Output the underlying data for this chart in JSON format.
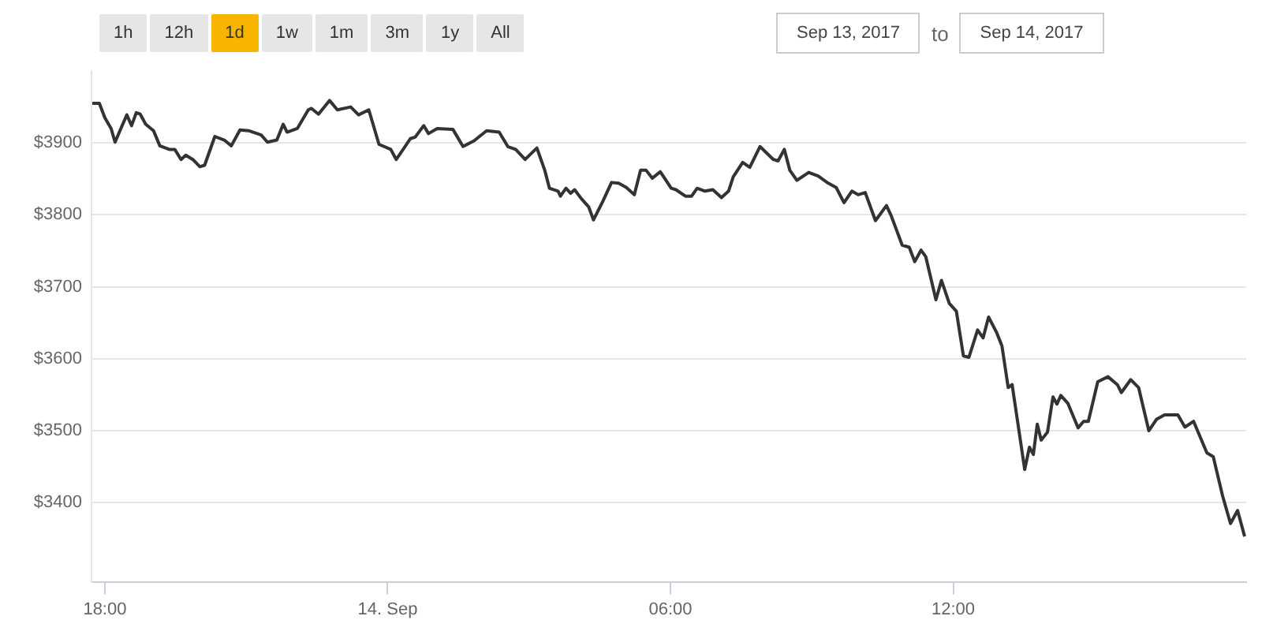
{
  "chart_data": {
    "type": "line",
    "annotations": [
      "1h",
      "12h",
      "1d",
      "1w",
      "1m",
      "3m",
      "1y",
      "All",
      "Sep 13, 2017",
      "to",
      "Sep 14, 2017"
    ],
    "x": [
      "2017-09-13T17:44",
      "2017-09-13T17:53",
      "2017-09-13T18:00",
      "2017-09-13T18:08",
      "2017-09-13T18:13",
      "2017-09-13T18:22",
      "2017-09-13T18:28",
      "2017-09-13T18:34",
      "2017-09-13T18:40",
      "2017-09-13T18:45",
      "2017-09-13T18:52",
      "2017-09-13T19:02",
      "2017-09-13T19:10",
      "2017-09-13T19:22",
      "2017-09-13T19:29",
      "2017-09-13T19:37",
      "2017-09-13T19:43",
      "2017-09-13T19:52",
      "2017-09-13T20:01",
      "2017-09-13T20:07",
      "2017-09-13T20:20",
      "2017-09-13T20:32",
      "2017-09-13T20:41",
      "2017-09-13T20:52",
      "2017-09-13T21:03",
      "2017-09-13T21:19",
      "2017-09-13T21:27",
      "2017-09-13T21:39",
      "2017-09-13T21:47",
      "2017-09-13T21:52",
      "2017-09-13T22:05",
      "2017-09-13T22:19",
      "2017-09-13T22:23",
      "2017-09-13T22:32",
      "2017-09-13T22:46",
      "2017-09-13T22:56",
      "2017-09-13T23:13",
      "2017-09-13T23:23",
      "2017-09-13T23:36",
      "2017-09-13T23:49",
      "2017-09-14T00:04",
      "2017-09-14T00:11",
      "2017-09-14T00:29",
      "2017-09-14T00:35",
      "2017-09-14T00:46",
      "2017-09-14T00:52",
      "2017-09-14T01:03",
      "2017-09-14T01:23",
      "2017-09-14T01:36",
      "2017-09-14T01:50",
      "2017-09-14T02:06",
      "2017-09-14T02:22",
      "2017-09-14T02:33",
      "2017-09-14T02:43",
      "2017-09-14T02:55",
      "2017-09-14T03:10",
      "2017-09-14T03:20",
      "2017-09-14T03:26",
      "2017-09-14T03:37",
      "2017-09-14T03:40",
      "2017-09-14T03:47",
      "2017-09-14T03:53",
      "2017-09-14T03:58",
      "2017-09-14T04:07",
      "2017-09-14T04:16",
      "2017-09-14T04:22",
      "2017-09-14T04:34",
      "2017-09-14T04:45",
      "2017-09-14T04:54",
      "2017-09-14T05:04",
      "2017-09-14T05:14",
      "2017-09-14T05:22",
      "2017-09-14T05:29",
      "2017-09-14T05:37",
      "2017-09-14T05:47",
      "2017-09-14T06:01",
      "2017-09-14T06:07",
      "2017-09-14T06:19",
      "2017-09-14T06:27",
      "2017-09-14T06:34",
      "2017-09-14T06:44",
      "2017-09-14T06:54",
      "2017-09-14T07:05",
      "2017-09-14T07:14",
      "2017-09-14T07:20",
      "2017-09-14T07:32",
      "2017-09-14T07:41",
      "2017-09-14T07:54",
      "2017-09-14T08:11",
      "2017-09-14T08:17",
      "2017-09-14T08:25",
      "2017-09-14T08:32",
      "2017-09-14T08:41",
      "2017-09-14T08:56",
      "2017-09-14T09:08",
      "2017-09-14T09:21",
      "2017-09-14T09:31",
      "2017-09-14T09:41",
      "2017-09-14T09:51",
      "2017-09-14T09:59",
      "2017-09-14T10:08",
      "2017-09-14T10:21",
      "2017-09-14T10:35",
      "2017-09-14T10:41",
      "2017-09-14T10:55",
      "2017-09-14T11:04",
      "2017-09-14T11:11",
      "2017-09-14T11:19",
      "2017-09-14T11:25",
      "2017-09-14T11:38",
      "2017-09-14T11:45",
      "2017-09-14T11:55",
      "2017-09-14T12:04",
      "2017-09-14T12:13",
      "2017-09-14T12:20",
      "2017-09-14T12:31",
      "2017-09-14T12:38",
      "2017-09-14T12:45",
      "2017-09-14T12:55",
      "2017-09-14T13:02",
      "2017-09-14T13:10",
      "2017-09-14T13:15",
      "2017-09-14T13:31",
      "2017-09-14T13:37",
      "2017-09-14T13:42",
      "2017-09-14T13:47",
      "2017-09-14T13:52",
      "2017-09-14T14:00",
      "2017-09-14T14:07",
      "2017-09-14T14:12",
      "2017-09-14T14:17",
      "2017-09-14T14:26",
      "2017-09-14T14:39",
      "2017-09-14T14:46",
      "2017-09-14T14:52",
      "2017-09-14T15:04",
      "2017-09-14T15:17",
      "2017-09-14T15:29",
      "2017-09-14T15:34",
      "2017-09-14T15:46",
      "2017-09-14T15:56",
      "2017-09-14T16:09",
      "2017-09-14T16:19",
      "2017-09-14T16:29",
      "2017-09-14T16:46",
      "2017-09-14T16:55",
      "2017-09-14T17:06",
      "2017-09-14T17:23",
      "2017-09-14T17:31",
      "2017-09-14T17:43",
      "2017-09-14T17:53",
      "2017-09-14T18:02",
      "2017-09-14T18:11"
    ],
    "series": [
      {
        "color": "#333333",
        "values": [
          3955,
          3955,
          3935,
          3920,
          3901,
          3924,
          3939,
          3924,
          3942,
          3940,
          3926,
          3917,
          3896,
          3891,
          3891,
          3877,
          3883,
          3877,
          3867,
          3869,
          3909,
          3904,
          3896,
          3918,
          3917,
          3911,
          3901,
          3904,
          3926,
          3915,
          3920,
          3946,
          3948,
          3940,
          3959,
          3946,
          3950,
          3939,
          3946,
          3898,
          3891,
          3877,
          3906,
          3908,
          3924,
          3913,
          3920,
          3919,
          3895,
          3903,
          3917,
          3915,
          3895,
          3891,
          3877,
          3893,
          3862,
          3837,
          3833,
          3826,
          3837,
          3830,
          3835,
          3822,
          3811,
          3793,
          3819,
          3845,
          3844,
          3838,
          3828,
          3862,
          3862,
          3851,
          3860,
          3837,
          3835,
          3826,
          3826,
          3837,
          3833,
          3835,
          3824,
          3833,
          3853,
          3873,
          3866,
          3895,
          3877,
          3875,
          3891,
          3862,
          3848,
          3859,
          3854,
          3844,
          3838,
          3817,
          3833,
          3828,
          3831,
          3792,
          3813,
          3799,
          3758,
          3755,
          3735,
          3751,
          3742,
          3682,
          3709,
          3677,
          3666,
          3604,
          3602,
          3640,
          3629,
          3658,
          3637,
          3618,
          3560,
          3564,
          3446,
          3477,
          3467,
          3509,
          3487,
          3498,
          3547,
          3537,
          3549,
          3538,
          3504,
          3513,
          3513,
          3568,
          3575,
          3564,
          3553,
          3571,
          3560,
          3500,
          3516,
          3522,
          3522,
          3505,
          3513,
          3469,
          3464,
          3409,
          3371,
          3389,
          3353
        ]
      }
    ],
    "xlim": [
      "2017-09-13T17:43",
      "2017-09-14T18:13"
    ],
    "ylim": [
      3290,
      4000
    ],
    "xticks": [
      {
        "value": "2017-09-13T18:00",
        "label": "18:00"
      },
      {
        "value": "2017-09-14T00:00",
        "label": "14. Sep"
      },
      {
        "value": "2017-09-14T06:00",
        "label": "06:00"
      },
      {
        "value": "2017-09-14T12:00",
        "label": "12:00"
      }
    ],
    "yticks": [
      {
        "value": 3400,
        "label": "$3400"
      },
      {
        "value": 3500,
        "label": "$3500"
      },
      {
        "value": 3600,
        "label": "$3600"
      },
      {
        "value": 3700,
        "label": "$3700"
      },
      {
        "value": 3800,
        "label": "$3800"
      },
      {
        "value": 3900,
        "label": "$3900"
      }
    ],
    "grid": "y",
    "legend": false,
    "marker": "none",
    "line_style": "solid"
  }
}
